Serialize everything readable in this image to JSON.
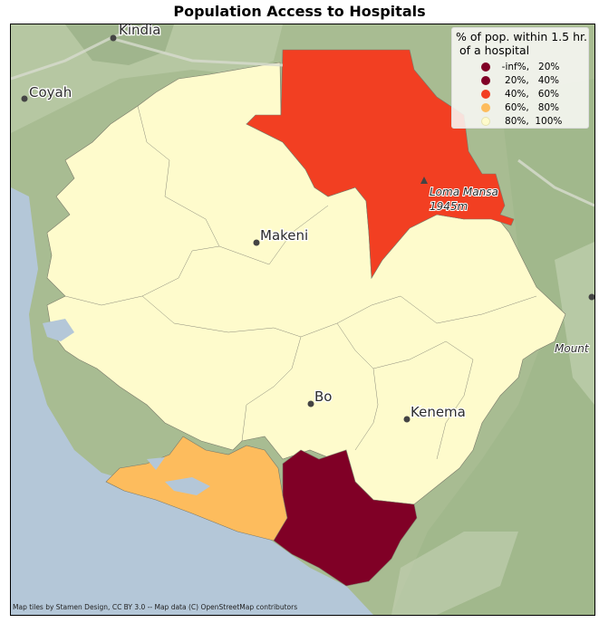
{
  "title": "Population Access to Hospitals",
  "legend": {
    "title": "% of pop. within 1.5 hr.\n of a hospital",
    "items": [
      {
        "label": "  -inf%,   20%",
        "color": "#800026"
      },
      {
        "label": "   20%,   40%",
        "color": "#800026"
      },
      {
        "label": "   40%,   60%",
        "color": "#f23f22"
      },
      {
        "label": "   60%,   80%",
        "color": "#fdbc5d"
      },
      {
        "label": "   80%,  100%",
        "color": "#fefbcc"
      }
    ]
  },
  "places": {
    "kindia": "Kindia",
    "coyah": "Coyah",
    "makeni": "Makeni",
    "bo": "Bo",
    "kenema": "Kenema",
    "loma_mansa": "Loma Mansa",
    "loma_elev": "1945m",
    "mount": "Mount"
  },
  "attribution": "Map tiles by Stamen Design, CC BY 3.0 -- Map data (C) OpenStreetMap contributors",
  "colors": {
    "ocean": "#b4c7d8",
    "land": "#a9bd95",
    "high_access": "#fefbcc",
    "mid_high_access": "#fdbc5d",
    "mid_access": "#f23f22",
    "low_access": "#800026"
  }
}
